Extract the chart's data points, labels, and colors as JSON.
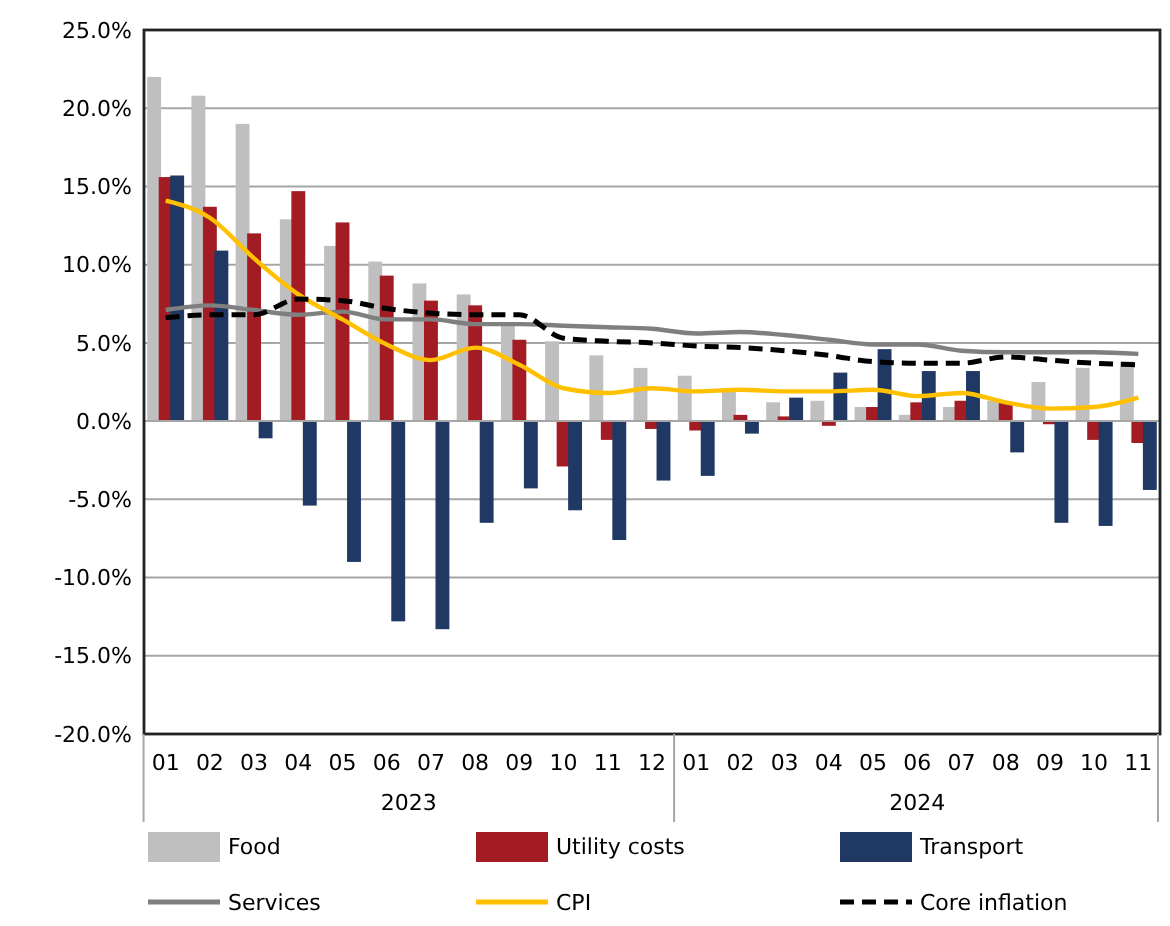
{
  "chart_data": {
    "type": "bar",
    "categories": [
      "01",
      "02",
      "03",
      "04",
      "05",
      "06",
      "07",
      "08",
      "09",
      "10",
      "11",
      "12",
      "01",
      "02",
      "03",
      "04",
      "05",
      "06",
      "07",
      "08",
      "09",
      "10",
      "11"
    ],
    "annotations": [
      "2023",
      "2024"
    ],
    "series": [
      {
        "name": "Food",
        "color": "#bfbfbf",
        "values": [
          22.0,
          20.8,
          19.0,
          12.9,
          11.2,
          10.2,
          8.8,
          8.1,
          6.2,
          5.1,
          4.2,
          3.4,
          2.9,
          1.9,
          1.2,
          1.3,
          0.9,
          0.4,
          0.9,
          1.3,
          2.5,
          3.4,
          3.8
        ]
      },
      {
        "name": "Utility costs",
        "color": "#a31c24",
        "values": [
          15.6,
          13.7,
          12.0,
          14.7,
          12.7,
          9.3,
          7.7,
          7.4,
          5.2,
          -2.9,
          -1.2,
          -0.5,
          -0.6,
          0.4,
          0.3,
          -0.3,
          0.9,
          1.2,
          1.3,
          1.2,
          -0.2,
          -1.2,
          -1.4
        ]
      },
      {
        "name": "Transport",
        "color": "#1f3864",
        "values": [
          15.7,
          10.9,
          -1.1,
          -5.4,
          -9.0,
          -12.8,
          -13.3,
          -6.5,
          -4.3,
          -5.7,
          -7.6,
          -3.8,
          -3.5,
          -0.8,
          1.5,
          3.1,
          4.6,
          3.2,
          3.2,
          -2.0,
          -6.5,
          -6.7,
          -4.4
        ]
      },
      {
        "name": "Services",
        "type": "line",
        "color": "#7f7f7f",
        "line_style": "solid",
        "values": [
          7.1,
          7.4,
          7.1,
          6.8,
          7.0,
          6.5,
          6.5,
          6.2,
          6.2,
          6.1,
          6.0,
          5.9,
          5.6,
          5.7,
          5.5,
          5.2,
          4.9,
          4.9,
          4.5,
          4.4,
          4.4,
          4.4,
          4.3
        ]
      },
      {
        "name": "CPI",
        "type": "line",
        "color": "#ffc000",
        "line_style": "solid",
        "values": [
          14.1,
          13.0,
          10.4,
          8.1,
          6.5,
          4.9,
          3.9,
          4.7,
          3.6,
          2.1,
          1.8,
          2.1,
          1.9,
          2.0,
          1.9,
          1.9,
          2.0,
          1.6,
          1.8,
          1.2,
          0.8,
          0.9,
          1.5
        ]
      },
      {
        "name": "Core inflation",
        "type": "line",
        "color": "#000000",
        "line_style": "dashed",
        "values": [
          6.6,
          6.8,
          6.8,
          7.8,
          7.7,
          7.2,
          6.9,
          6.8,
          6.8,
          5.3,
          5.1,
          5.0,
          4.8,
          4.7,
          4.5,
          4.2,
          3.8,
          3.7,
          3.7,
          4.1,
          3.9,
          3.7,
          3.6
        ]
      }
    ],
    "ylim": [
      -20,
      25
    ],
    "yticks": [
      {
        "value": -20,
        "label": "-20.0%"
      },
      {
        "value": -15,
        "label": "-15.0%"
      },
      {
        "value": -10,
        "label": "-10.0%"
      },
      {
        "value": -5,
        "label": "-5.0%"
      },
      {
        "value": 0,
        "label": "0.0%"
      },
      {
        "value": 5,
        "label": "5.0%"
      },
      {
        "value": 10,
        "label": "10.0%"
      },
      {
        "value": 15,
        "label": "15.0%"
      },
      {
        "value": 20,
        "label": "20.0%"
      },
      {
        "value": 25,
        "label": "25.0%"
      }
    ],
    "grid": "y",
    "legend": "bottom"
  }
}
